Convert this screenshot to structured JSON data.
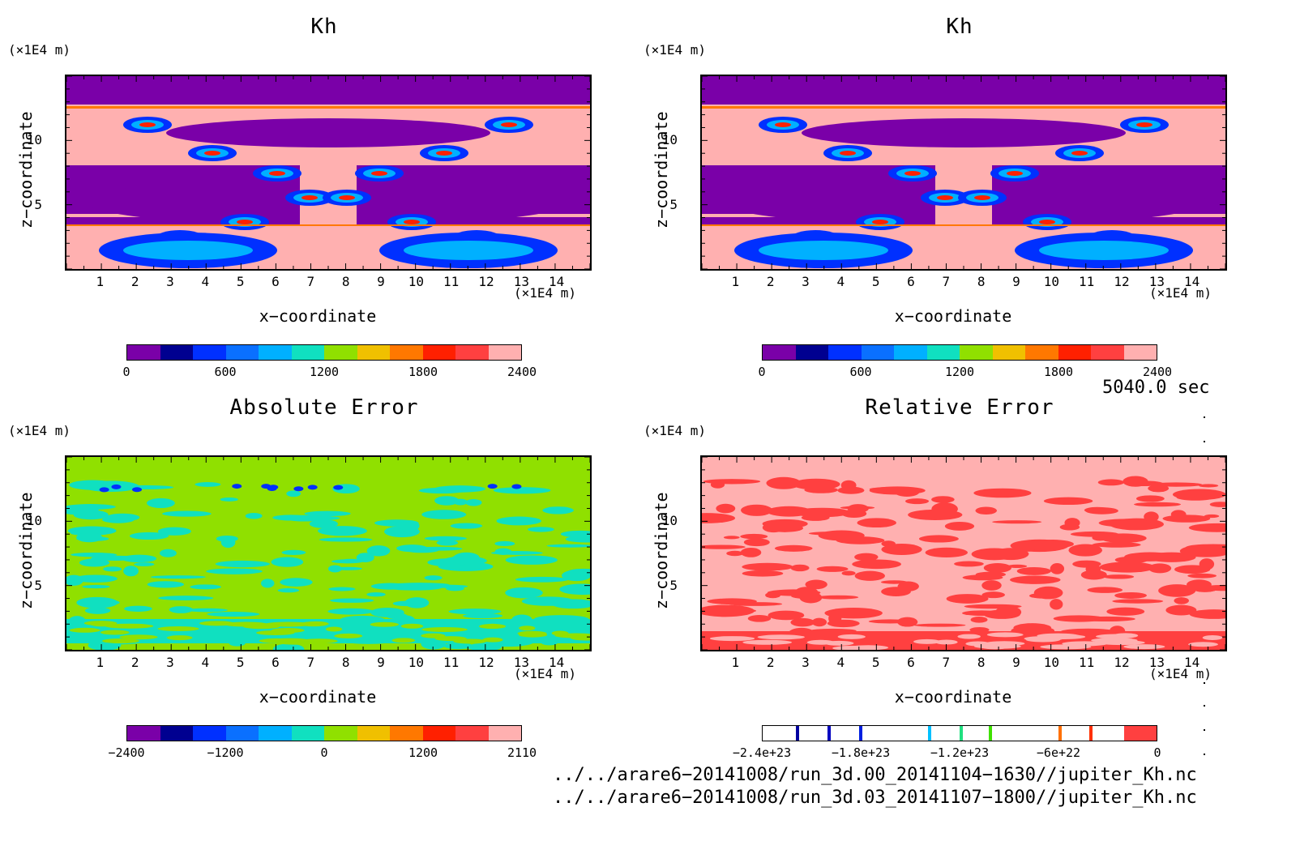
{
  "panels": [
    {
      "title": "Kh",
      "yunit": "(×1E4 m)",
      "xunit": "(×1E4 m)",
      "ylabel": "z−coordinate",
      "xlabel": "x−coordinate",
      "cbar_labels": [
        "0",
        "600",
        "1200",
        "1800",
        "2400"
      ],
      "cbar_colors": [
        "#7a00a8",
        "#000090",
        "#0030ff",
        "#0a70ff",
        "#00b0ff",
        "#10e0c0",
        "#90e000",
        "#f0c000",
        "#ff7800",
        "#ff2000",
        "#ff4040",
        "#ffb0b0"
      ]
    },
    {
      "title": "Kh",
      "yunit": "(×1E4 m)",
      "xunit": "(×1E4 m)",
      "ylabel": "z−coordinate",
      "xlabel": "x−coordinate",
      "cbar_labels": [
        "0",
        "600",
        "1200",
        "1800",
        "2400"
      ],
      "cbar_colors": [
        "#7a00a8",
        "#000090",
        "#0030ff",
        "#0a70ff",
        "#00b0ff",
        "#10e0c0",
        "#90e000",
        "#f0c000",
        "#ff7800",
        "#ff2000",
        "#ff4040",
        "#ffb0b0"
      ]
    },
    {
      "title": "Absolute Error",
      "yunit": "(×1E4 m)",
      "xunit": "(×1E4 m)",
      "ylabel": "z−coordinate",
      "xlabel": "x−coordinate",
      "cbar_labels": [
        "−2400",
        "−1200",
        "0",
        "1200",
        "2110"
      ],
      "cbar_colors": [
        "#7a00a8",
        "#000090",
        "#0030ff",
        "#0a70ff",
        "#00b0ff",
        "#10e0c0",
        "#90e000",
        "#f0c000",
        "#ff7800",
        "#ff2000",
        "#ff4040",
        "#ffb0b0"
      ]
    },
    {
      "title": "Relative Error",
      "yunit": "(×1E4 m)",
      "xunit": "(×1E4 m)",
      "ylabel": "z−coordinate",
      "xlabel": "x−coordinate",
      "cbar_labels": [
        "−2.4e+23",
        "−1.8e+23",
        "−1.2e+23",
        "−6e+22",
        "0"
      ],
      "cbar_colors": [
        "#ffffff",
        "#ffffff",
        "#ffffff",
        "#ffffff",
        "#ffffff",
        "#ffffff",
        "#ffffff",
        "#ffffff",
        "#ffffff",
        "#ffffff",
        "#ffffff",
        "#ff4040"
      ]
    }
  ],
  "time_label": "5040.0 sec",
  "file1": "../../arare6−20141008/run_3d.00_20141104−1630//jupiter_Kh.nc",
  "file2": "../../arare6−20141008/run_3d.03_20141107−1800//jupiter_Kh.nc",
  "chart_data": [
    {
      "type": "heatmap",
      "title": "Kh",
      "xlabel": "x−coordinate",
      "ylabel": "z−coordinate",
      "xunit": "(×1E4 m)",
      "yunit": "(×1E4 m)",
      "xticks": [
        1,
        2,
        3,
        4,
        5,
        6,
        7,
        8,
        9,
        10,
        11,
        12,
        13,
        14
      ],
      "yticks": [
        5,
        10
      ],
      "xlim": [
        0,
        15
      ],
      "ylim": [
        0,
        15
      ],
      "colorbar": {
        "min": 0,
        "max": 2400,
        "ticks": [
          0,
          600,
          1200,
          1800,
          2400
        ]
      }
    },
    {
      "type": "heatmap",
      "title": "Kh",
      "xlabel": "x−coordinate",
      "ylabel": "z−coordinate",
      "xunit": "(×1E4 m)",
      "yunit": "(×1E4 m)",
      "xticks": [
        1,
        2,
        3,
        4,
        5,
        6,
        7,
        8,
        9,
        10,
        11,
        12,
        13,
        14
      ],
      "yticks": [
        5,
        10
      ],
      "xlim": [
        0,
        15
      ],
      "ylim": [
        0,
        15
      ],
      "colorbar": {
        "min": 0,
        "max": 2400,
        "ticks": [
          0,
          600,
          1200,
          1800,
          2400
        ]
      }
    },
    {
      "type": "heatmap",
      "title": "Absolute Error",
      "xlabel": "x−coordinate",
      "ylabel": "z−coordinate",
      "xunit": "(×1E4 m)",
      "yunit": "(×1E4 m)",
      "xticks": [
        1,
        2,
        3,
        4,
        5,
        6,
        7,
        8,
        9,
        10,
        11,
        12,
        13,
        14
      ],
      "yticks": [
        5,
        10
      ],
      "xlim": [
        0,
        15
      ],
      "ylim": [
        0,
        15
      ],
      "colorbar": {
        "min": -2400,
        "max": 2110,
        "ticks": [
          -2400,
          -1200,
          0,
          1200,
          2110
        ]
      }
    },
    {
      "type": "heatmap",
      "title": "Relative Error",
      "xlabel": "x−coordinate",
      "ylabel": "z−coordinate",
      "xunit": "(×1E4 m)",
      "yunit": "(×1E4 m)",
      "xticks": [
        1,
        2,
        3,
        4,
        5,
        6,
        7,
        8,
        9,
        10,
        11,
        12,
        13,
        14
      ],
      "yticks": [
        5,
        10
      ],
      "xlim": [
        0,
        15
      ],
      "ylim": [
        0,
        15
      ],
      "colorbar": {
        "min": -2.4e+23,
        "max": 0,
        "ticks": [
          -2.4e+23,
          -1.8e+23,
          -1.2e+23,
          -6e+22,
          0
        ]
      }
    }
  ]
}
